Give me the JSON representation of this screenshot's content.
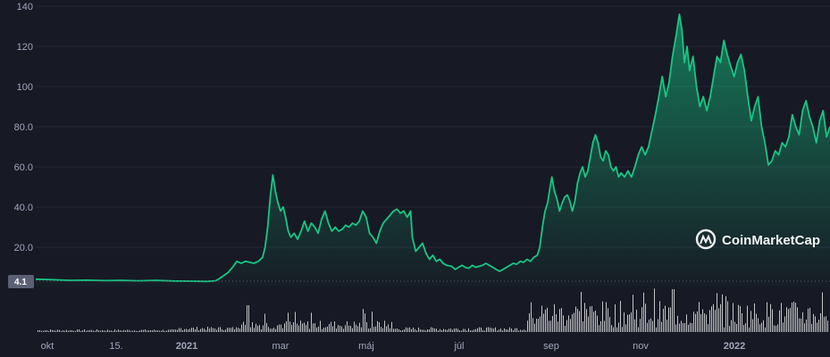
{
  "chart_data": {
    "type": "area",
    "y_ticks": [
      "140",
      "120",
      "100",
      "80.0",
      "60.0",
      "40.0",
      "20.0"
    ],
    "ylim": [
      0,
      140
    ],
    "start_value_label": "4.1",
    "x_ticks": [
      {
        "label": "okt",
        "bold": false
      },
      {
        "label": "15.",
        "bold": false
      },
      {
        "label": "2021",
        "bold": true
      },
      {
        "label": "mar",
        "bold": false
      },
      {
        "label": "máj",
        "bold": false
      },
      {
        "label": "júl",
        "bold": false
      },
      {
        "label": "sep",
        "bold": false
      },
      {
        "label": "nov",
        "bold": false
      },
      {
        "label": "2022",
        "bold": true
      }
    ],
    "grid": "horizontal",
    "watermark": "CoinMarketCap",
    "colors": {
      "line": "#16c784",
      "background": "#171924",
      "volume": "#ffffff",
      "grid": "#242836",
      "axis_text": "#a1a7bb"
    },
    "price_series": [
      [
        0,
        4.1
      ],
      [
        20,
        3.8
      ],
      [
        40,
        3.5
      ],
      [
        60,
        3.6
      ],
      [
        80,
        3.4
      ],
      [
        100,
        3.5
      ],
      [
        120,
        3.3
      ],
      [
        140,
        3.5
      ],
      [
        160,
        3.2
      ],
      [
        180,
        3.1
      ],
      [
        200,
        3.0
      ],
      [
        210,
        3.3
      ],
      [
        215,
        4.5
      ],
      [
        220,
        6.0
      ],
      [
        225,
        7.5
      ],
      [
        230,
        10.0
      ],
      [
        235,
        13.0
      ],
      [
        240,
        12.0
      ],
      [
        245,
        13.0
      ],
      [
        250,
        12.5
      ],
      [
        255,
        12.0
      ],
      [
        260,
        13.0
      ],
      [
        265,
        15.0
      ],
      [
        268,
        20.0
      ],
      [
        271,
        30.0
      ],
      [
        274,
        45.0
      ],
      [
        277,
        56.0
      ],
      [
        280,
        48.0
      ],
      [
        283,
        42.0
      ],
      [
        286,
        38.0
      ],
      [
        289,
        40.0
      ],
      [
        292,
        35.0
      ],
      [
        295,
        28.0
      ],
      [
        298,
        25.0
      ],
      [
        302,
        27.0
      ],
      [
        306,
        24.0
      ],
      [
        310,
        28.0
      ],
      [
        314,
        33.0
      ],
      [
        318,
        28.0
      ],
      [
        322,
        32.0
      ],
      [
        326,
        30.0
      ],
      [
        330,
        27.0
      ],
      [
        334,
        34.0
      ],
      [
        338,
        38.0
      ],
      [
        342,
        32.0
      ],
      [
        346,
        28.0
      ],
      [
        350,
        30.0
      ],
      [
        354,
        28.0
      ],
      [
        358,
        29.0
      ],
      [
        362,
        31.0
      ],
      [
        366,
        30.0
      ],
      [
        370,
        32.0
      ],
      [
        374,
        31.0
      ],
      [
        378,
        33.0
      ],
      [
        382,
        38.0
      ],
      [
        386,
        35.0
      ],
      [
        390,
        27.0
      ],
      [
        394,
        25.0
      ],
      [
        398,
        22.0
      ],
      [
        402,
        28.0
      ],
      [
        406,
        32.0
      ],
      [
        410,
        34.0
      ],
      [
        414,
        36.0
      ],
      [
        418,
        38.0
      ],
      [
        422,
        39.0
      ],
      [
        426,
        37.0
      ],
      [
        430,
        38.0
      ],
      [
        434,
        35.0
      ],
      [
        438,
        38.0
      ],
      [
        440,
        25.0
      ],
      [
        444,
        18.0
      ],
      [
        448,
        20.0
      ],
      [
        452,
        22.0
      ],
      [
        456,
        17.0
      ],
      [
        460,
        14.0
      ],
      [
        464,
        16.0
      ],
      [
        468,
        13.0
      ],
      [
        472,
        14.0
      ],
      [
        476,
        12.0
      ],
      [
        480,
        11.0
      ],
      [
        486,
        10.5
      ],
      [
        490,
        9.0
      ],
      [
        494,
        10.0
      ],
      [
        498,
        11.0
      ],
      [
        502,
        10.0
      ],
      [
        506,
        9.5
      ],
      [
        510,
        11.0
      ],
      [
        514,
        10.0
      ],
      [
        518,
        10.5
      ],
      [
        522,
        11.0
      ],
      [
        526,
        12.0
      ],
      [
        530,
        11.0
      ],
      [
        534,
        10.0
      ],
      [
        538,
        9.0
      ],
      [
        542,
        8.0
      ],
      [
        546,
        9.0
      ],
      [
        550,
        10.0
      ],
      [
        554,
        11.0
      ],
      [
        558,
        12.0
      ],
      [
        562,
        11.5
      ],
      [
        566,
        13.0
      ],
      [
        570,
        12.5
      ],
      [
        574,
        14.0
      ],
      [
        578,
        13.0
      ],
      [
        582,
        15.0
      ],
      [
        586,
        16.0
      ],
      [
        589,
        20.0
      ],
      [
        592,
        30.0
      ],
      [
        595,
        38.0
      ],
      [
        598,
        42.0
      ],
      [
        601,
        50.0
      ],
      [
        603,
        55.0
      ],
      [
        606,
        48.0
      ],
      [
        609,
        44.0
      ],
      [
        612,
        38.0
      ],
      [
        615,
        42.0
      ],
      [
        618,
        45.0
      ],
      [
        621,
        46.0
      ],
      [
        624,
        43.0
      ],
      [
        627,
        38.0
      ],
      [
        630,
        43.0
      ],
      [
        633,
        52.0
      ],
      [
        636,
        57.0
      ],
      [
        639,
        60.0
      ],
      [
        642,
        55.0
      ],
      [
        645,
        58.0
      ],
      [
        648,
        65.0
      ],
      [
        651,
        72.0
      ],
      [
        654,
        76.0
      ],
      [
        657,
        72.0
      ],
      [
        660,
        65.0
      ],
      [
        663,
        63.0
      ],
      [
        666,
        68.0
      ],
      [
        669,
        66.0
      ],
      [
        672,
        60.0
      ],
      [
        675,
        58.0
      ],
      [
        678,
        60.0
      ],
      [
        681,
        55.0
      ],
      [
        684,
        57.0
      ],
      [
        688,
        55.0
      ],
      [
        692,
        58.0
      ],
      [
        696,
        55.0
      ],
      [
        700,
        60.0
      ],
      [
        704,
        66.0
      ],
      [
        708,
        70.0
      ],
      [
        712,
        66.0
      ],
      [
        716,
        70.0
      ],
      [
        720,
        78.0
      ],
      [
        724,
        86.0
      ],
      [
        728,
        95.0
      ],
      [
        732,
        105.0
      ],
      [
        736,
        95.0
      ],
      [
        740,
        102.0
      ],
      [
        744,
        115.0
      ],
      [
        748,
        125.0
      ],
      [
        752,
        136.0
      ],
      [
        755,
        128.0
      ],
      [
        758,
        112.0
      ],
      [
        761,
        120.0
      ],
      [
        764,
        108.0
      ],
      [
        768,
        115.0
      ],
      [
        772,
        100.0
      ],
      [
        776,
        90.0
      ],
      [
        780,
        95.0
      ],
      [
        784,
        88.0
      ],
      [
        788,
        95.0
      ],
      [
        792,
        105.0
      ],
      [
        796,
        115.0
      ],
      [
        800,
        112.0
      ],
      [
        804,
        123.0
      ],
      [
        808,
        116.0
      ],
      [
        812,
        110.0
      ],
      [
        816,
        105.0
      ],
      [
        820,
        112.0
      ],
      [
        824,
        116.0
      ],
      [
        828,
        108.0
      ],
      [
        832,
        95.0
      ],
      [
        836,
        83.0
      ],
      [
        840,
        90.0
      ],
      [
        844,
        95.0
      ],
      [
        848,
        80.0
      ],
      [
        852,
        72.0
      ],
      [
        856,
        61.0
      ],
      [
        860,
        63.0
      ],
      [
        864,
        68.0
      ],
      [
        868,
        66.0
      ],
      [
        872,
        72.0
      ],
      [
        876,
        70.0
      ],
      [
        880,
        75.0
      ],
      [
        884,
        86.0
      ],
      [
        888,
        80.0
      ],
      [
        892,
        76.0
      ],
      [
        896,
        88.0
      ],
      [
        900,
        93.0
      ],
      [
        904,
        85.0
      ],
      [
        908,
        80.0
      ],
      [
        912,
        72.0
      ],
      [
        916,
        83.0
      ],
      [
        920,
        88.0
      ],
      [
        924,
        75.0
      ],
      [
        928,
        80.0
      ]
    ]
  }
}
